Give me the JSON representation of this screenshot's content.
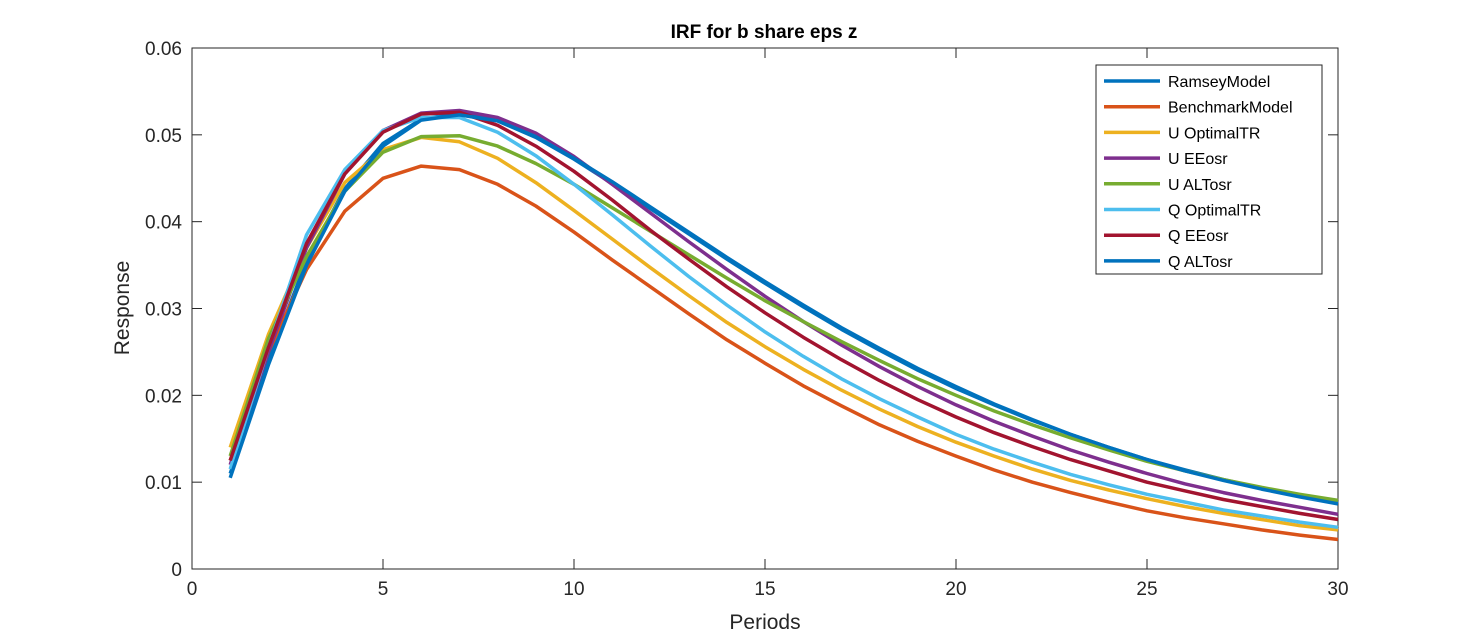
{
  "chart_data": {
    "type": "line",
    "title": "IRF for b share eps z",
    "xlabel": "Periods",
    "ylabel": "Response",
    "xlim": [
      0,
      30
    ],
    "ylim": [
      0,
      0.06
    ],
    "xticks": [
      0,
      5,
      10,
      15,
      20,
      25,
      30
    ],
    "xtick_labels": [
      "0",
      "5",
      "10",
      "15",
      "20",
      "25",
      "30"
    ],
    "yticks": [
      0,
      0.01,
      0.02,
      0.03,
      0.04,
      0.05,
      0.06
    ],
    "ytick_labels": [
      "0",
      "0.01",
      "0.02",
      "0.03",
      "0.04",
      "0.05",
      "0.06"
    ],
    "grid": false,
    "legend_position": "top-right",
    "x": [
      1,
      2,
      3,
      4,
      5,
      6,
      7,
      8,
      9,
      10,
      11,
      12,
      13,
      14,
      15,
      16,
      17,
      18,
      19,
      20,
      21,
      22,
      23,
      24,
      25,
      26,
      27,
      28,
      29,
      30
    ],
    "series": [
      {
        "name": "RamseyModel",
        "color": "#0072BD",
        "values": [
          0.011,
          0.024,
          0.0355,
          0.0438,
          0.049,
          0.0518,
          0.0525,
          0.0516,
          0.0497,
          0.0472,
          0.0444,
          0.0415,
          0.0386,
          0.0357,
          0.0329,
          0.0302,
          0.0276,
          0.0252,
          0.0229,
          0.0208,
          0.0189,
          0.0171,
          0.0155,
          0.014,
          0.0126,
          0.0114,
          0.0103,
          0.0093,
          0.0084,
          0.0076
        ]
      },
      {
        "name": "BenchmarkModel",
        "color": "#D95319",
        "values": [
          0.0125,
          0.025,
          0.0345,
          0.0412,
          0.045,
          0.0464,
          0.046,
          0.0443,
          0.0418,
          0.0388,
          0.0356,
          0.0325,
          0.0294,
          0.0264,
          0.0237,
          0.0211,
          0.0188,
          0.0166,
          0.0147,
          0.013,
          0.0114,
          0.01,
          0.0088,
          0.0077,
          0.0067,
          0.0059,
          0.0052,
          0.0045,
          0.0039,
          0.0034
        ]
      },
      {
        "name": "U OptimalTR",
        "color": "#EDB120",
        "values": [
          0.014,
          0.027,
          0.037,
          0.0445,
          0.0483,
          0.0497,
          0.0492,
          0.0473,
          0.0445,
          0.0413,
          0.038,
          0.0347,
          0.0315,
          0.0284,
          0.0256,
          0.023,
          0.0206,
          0.0184,
          0.0164,
          0.0146,
          0.013,
          0.0115,
          0.0102,
          0.0091,
          0.0081,
          0.0072,
          0.0064,
          0.0057,
          0.005,
          0.0045
        ]
      },
      {
        "name": "U EEosr",
        "color": "#7E2F8E",
        "values": [
          0.012,
          0.025,
          0.037,
          0.0455,
          0.0505,
          0.0525,
          0.0528,
          0.052,
          0.0502,
          0.0475,
          0.0443,
          0.041,
          0.0377,
          0.0345,
          0.0314,
          0.0285,
          0.0258,
          0.0233,
          0.021,
          0.0189,
          0.017,
          0.0153,
          0.0137,
          0.0123,
          0.011,
          0.0098,
          0.0088,
          0.0079,
          0.0071,
          0.0063
        ]
      },
      {
        "name": "U ALTosr",
        "color": "#77AC30",
        "values": [
          0.013,
          0.0265,
          0.036,
          0.0435,
          0.048,
          0.0498,
          0.0499,
          0.0487,
          0.0467,
          0.0443,
          0.0416,
          0.0389,
          0.0362,
          0.0335,
          0.0309,
          0.0285,
          0.0262,
          0.024,
          0.0219,
          0.02,
          0.0182,
          0.0166,
          0.0151,
          0.0137,
          0.0124,
          0.0113,
          0.0103,
          0.0094,
          0.0086,
          0.0079
        ]
      },
      {
        "name": "Q OptimalTR",
        "color": "#4DBEEE",
        "values": [
          0.0115,
          0.0255,
          0.0385,
          0.046,
          0.0505,
          0.052,
          0.052,
          0.0503,
          0.0476,
          0.0443,
          0.0408,
          0.0372,
          0.0337,
          0.0304,
          0.0273,
          0.0245,
          0.0219,
          0.0196,
          0.0175,
          0.0155,
          0.0138,
          0.0123,
          0.0109,
          0.0097,
          0.0086,
          0.0077,
          0.0068,
          0.0061,
          0.0054,
          0.0048
        ]
      },
      {
        "name": "Q EEosr",
        "color": "#A2142F",
        "values": [
          0.0125,
          0.0255,
          0.0375,
          0.0455,
          0.0503,
          0.0524,
          0.0526,
          0.0511,
          0.0487,
          0.0458,
          0.0425,
          0.039,
          0.0357,
          0.0325,
          0.0295,
          0.0267,
          0.0241,
          0.0217,
          0.0195,
          0.0175,
          0.0157,
          0.0141,
          0.0126,
          0.0113,
          0.01,
          0.009,
          0.008,
          0.0072,
          0.0064,
          0.0057
        ]
      },
      {
        "name": "Q ALTosr",
        "color": "#0072BD",
        "values": [
          0.0105,
          0.0235,
          0.035,
          0.0435,
          0.0487,
          0.0517,
          0.0523,
          0.0516,
          0.0498,
          0.0473,
          0.0446,
          0.0417,
          0.0388,
          0.0359,
          0.0331,
          0.0304,
          0.0278,
          0.0254,
          0.0231,
          0.021,
          0.019,
          0.0172,
          0.0155,
          0.014,
          0.0126,
          0.0113,
          0.0102,
          0.0092,
          0.0083,
          0.0075
        ]
      }
    ]
  }
}
